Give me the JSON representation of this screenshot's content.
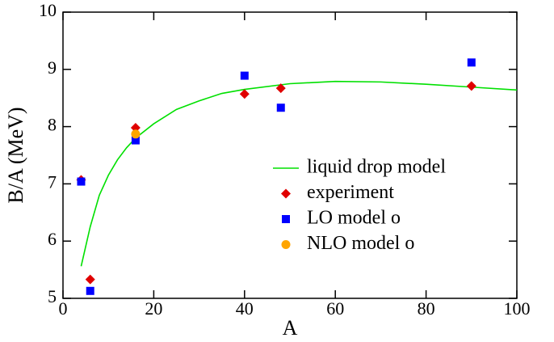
{
  "chart_data": {
    "type": "scatter",
    "x_label": "A",
    "y_label": "B/A (MeV)",
    "xlim": [
      0,
      100
    ],
    "xticks": [
      0,
      20,
      40,
      60,
      80,
      100
    ],
    "ylim": [
      5,
      10
    ],
    "yticks": [
      5,
      6,
      7,
      8,
      9,
      10
    ],
    "legend": "right",
    "series": [
      {
        "name": "liquid drop model",
        "color": "#00e000",
        "marker": "line",
        "x": [
          4,
          6,
          8,
          10,
          12,
          14,
          16,
          20,
          25,
          30,
          35,
          40,
          50,
          60,
          70,
          80,
          90,
          100
        ],
        "values": [
          5.56,
          6.25,
          6.8,
          7.15,
          7.42,
          7.63,
          7.8,
          8.05,
          8.3,
          8.45,
          8.58,
          8.65,
          8.75,
          8.79,
          8.78,
          8.74,
          8.69,
          8.64
        ]
      },
      {
        "name": "experiment",
        "color": "#e00000",
        "marker": "diamond",
        "x": [
          4,
          6,
          16,
          40,
          48,
          90
        ],
        "values": [
          7.07,
          5.33,
          7.98,
          8.57,
          8.67,
          8.71
        ]
      },
      {
        "name": "LO model o",
        "color": "#0000ff",
        "marker": "square",
        "x": [
          4,
          6,
          16,
          40,
          48,
          90
        ],
        "values": [
          7.04,
          5.13,
          7.76,
          8.89,
          8.33,
          9.12
        ]
      },
      {
        "name": "NLO model o",
        "color": "#ffa500",
        "marker": "circle",
        "x": [
          16
        ],
        "values": [
          7.87
        ]
      }
    ]
  }
}
